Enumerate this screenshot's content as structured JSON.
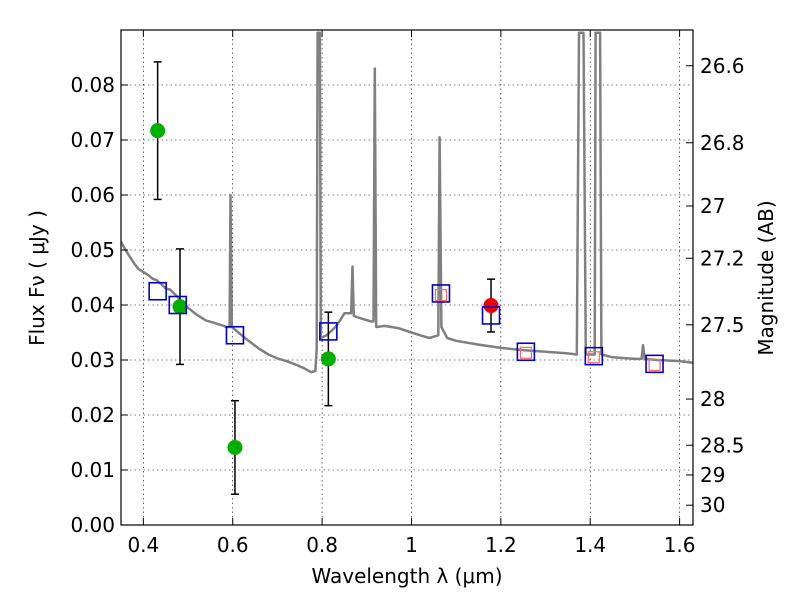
{
  "chart_data": {
    "type": "scatter",
    "xlabel": "Wavelength  λ (μm)",
    "ylabel": "Flux  Fν  ( μJy )",
    "ylabel_right": "Magnitude (AB)",
    "xlim": [
      0.35,
      1.63
    ],
    "ylim": [
      0.0,
      0.09
    ],
    "grid": true,
    "x_ticks": [
      {
        "value": 0.4,
        "label": "0.4"
      },
      {
        "value": 0.6,
        "label": "0.6"
      },
      {
        "value": 0.8,
        "label": "0.8"
      },
      {
        "value": 1.0,
        "label": "1"
      },
      {
        "value": 1.2,
        "label": "1.2"
      },
      {
        "value": 1.4,
        "label": "1.4"
      },
      {
        "value": 1.6,
        "label": "1.6"
      }
    ],
    "y_ticks": [
      {
        "value": 0.0,
        "label": "0.00"
      },
      {
        "value": 0.01,
        "label": "0.01"
      },
      {
        "value": 0.02,
        "label": "0.02"
      },
      {
        "value": 0.03,
        "label": "0.03"
      },
      {
        "value": 0.04,
        "label": "0.04"
      },
      {
        "value": 0.05,
        "label": "0.05"
      },
      {
        "value": 0.06,
        "label": "0.06"
      },
      {
        "value": 0.07,
        "label": "0.07"
      },
      {
        "value": 0.08,
        "label": "0.08"
      }
    ],
    "right_ticks": [
      {
        "label": "26.6",
        "flux": 0.0835
      },
      {
        "label": "26.8",
        "flux": 0.0695
      },
      {
        "label": "27",
        "flux": 0.058
      },
      {
        "label": "27.2",
        "flux": 0.0485
      },
      {
        "label": "27.5",
        "flux": 0.0364
      },
      {
        "label": "28",
        "flux": 0.0229
      },
      {
        "label": "28.5",
        "flux": 0.0145
      },
      {
        "label": "29",
        "flux": 0.0091
      },
      {
        "label": "30",
        "flux": 0.0036
      }
    ],
    "series": [
      {
        "kind": "line",
        "color": "#808080",
        "points": [
          [
            0.35,
            0.0515
          ],
          [
            0.36,
            0.05
          ],
          [
            0.38,
            0.0475
          ],
          [
            0.39,
            0.0465
          ],
          [
            0.4,
            0.046
          ],
          [
            0.41,
            0.0455
          ],
          [
            0.42,
            0.0448
          ],
          [
            0.43,
            0.0445
          ],
          [
            0.44,
            0.0438
          ],
          [
            0.45,
            0.043
          ],
          [
            0.46,
            0.0428
          ],
          [
            0.47,
            0.042
          ],
          [
            0.48,
            0.0412
          ],
          [
            0.5,
            0.0395
          ],
          [
            0.52,
            0.0382
          ],
          [
            0.54,
            0.0372
          ],
          [
            0.56,
            0.0367
          ],
          [
            0.58,
            0.0362
          ],
          [
            0.585,
            0.036
          ],
          [
            0.593,
            0.036
          ],
          [
            0.595,
            0.06
          ],
          [
            0.598,
            0.036
          ],
          [
            0.62,
            0.0345
          ],
          [
            0.64,
            0.0332
          ],
          [
            0.66,
            0.032
          ],
          [
            0.68,
            0.031
          ],
          [
            0.7,
            0.0303
          ],
          [
            0.72,
            0.0298
          ],
          [
            0.74,
            0.0292
          ],
          [
            0.76,
            0.0285
          ],
          [
            0.775,
            0.0278
          ],
          [
            0.785,
            0.028
          ],
          [
            0.788,
            0.032
          ],
          [
            0.79,
            0.0895
          ],
          [
            0.795,
            0.0895
          ],
          [
            0.797,
            0.034
          ],
          [
            0.81,
            0.0345
          ],
          [
            0.83,
            0.036
          ],
          [
            0.84,
            0.0372
          ],
          [
            0.85,
            0.0385
          ],
          [
            0.865,
            0.0385
          ],
          [
            0.868,
            0.047
          ],
          [
            0.871,
            0.038
          ],
          [
            0.89,
            0.0375
          ],
          [
            0.91,
            0.037
          ],
          [
            0.915,
            0.037
          ],
          [
            0.918,
            0.083
          ],
          [
            0.921,
            0.036
          ],
          [
            0.94,
            0.0362
          ],
          [
            0.97,
            0.0358
          ],
          [
            1.0,
            0.035
          ],
          [
            1.02,
            0.0345
          ],
          [
            1.04,
            0.034
          ],
          [
            1.06,
            0.0345
          ],
          [
            1.063,
            0.0705
          ],
          [
            1.067,
            0.036
          ],
          [
            1.08,
            0.034
          ],
          [
            1.1,
            0.0335
          ],
          [
            1.15,
            0.0328
          ],
          [
            1.2,
            0.0322
          ],
          [
            1.25,
            0.0318
          ],
          [
            1.3,
            0.0315
          ],
          [
            1.35,
            0.0312
          ],
          [
            1.37,
            0.031
          ],
          [
            1.375,
            0.0895
          ],
          [
            1.385,
            0.0895
          ],
          [
            1.39,
            0.031
          ],
          [
            1.41,
            0.031
          ],
          [
            1.412,
            0.0895
          ],
          [
            1.422,
            0.0895
          ],
          [
            1.425,
            0.031
          ],
          [
            1.45,
            0.0305
          ],
          [
            1.5,
            0.0302
          ],
          [
            1.515,
            0.0302
          ],
          [
            1.518,
            0.0327
          ],
          [
            1.522,
            0.0302
          ],
          [
            1.55,
            0.03
          ],
          [
            1.6,
            0.0298
          ],
          [
            1.63,
            0.0295
          ]
        ]
      },
      {
        "kind": "points",
        "marker": "circle",
        "color": "#00b000",
        "points": [
          {
            "x": 0.432,
            "y": 0.0717,
            "err": 0.0125
          },
          {
            "x": 0.482,
            "y": 0.0397,
            "err": 0.0105
          },
          {
            "x": 0.605,
            "y": 0.0141,
            "err": 0.0085
          },
          {
            "x": 0.814,
            "y": 0.0302,
            "err": 0.0085
          }
        ]
      },
      {
        "kind": "points",
        "marker": "circle",
        "color": "#ee0000",
        "points": [
          {
            "x": 1.178,
            "y": 0.0399,
            "err": 0.0048
          }
        ]
      },
      {
        "kind": "points",
        "marker": "square",
        "color": "#0000cc",
        "points": [
          {
            "x": 0.432,
            "y": 0.0425
          },
          {
            "x": 0.477,
            "y": 0.04
          },
          {
            "x": 0.605,
            "y": 0.0345
          },
          {
            "x": 0.814,
            "y": 0.0352
          },
          {
            "x": 1.066,
            "y": 0.0421
          },
          {
            "x": 1.178,
            "y": 0.0381
          },
          {
            "x": 1.256,
            "y": 0.0315
          },
          {
            "x": 1.408,
            "y": 0.0307
          },
          {
            "x": 1.544,
            "y": 0.0293
          }
        ]
      },
      {
        "kind": "points",
        "marker": "small-square",
        "color": "#ff6666",
        "points": [
          {
            "x": 1.066,
            "y": 0.0418
          },
          {
            "x": 1.256,
            "y": 0.0313
          },
          {
            "x": 1.408,
            "y": 0.0305
          },
          {
            "x": 1.544,
            "y": 0.0291
          }
        ]
      }
    ]
  }
}
